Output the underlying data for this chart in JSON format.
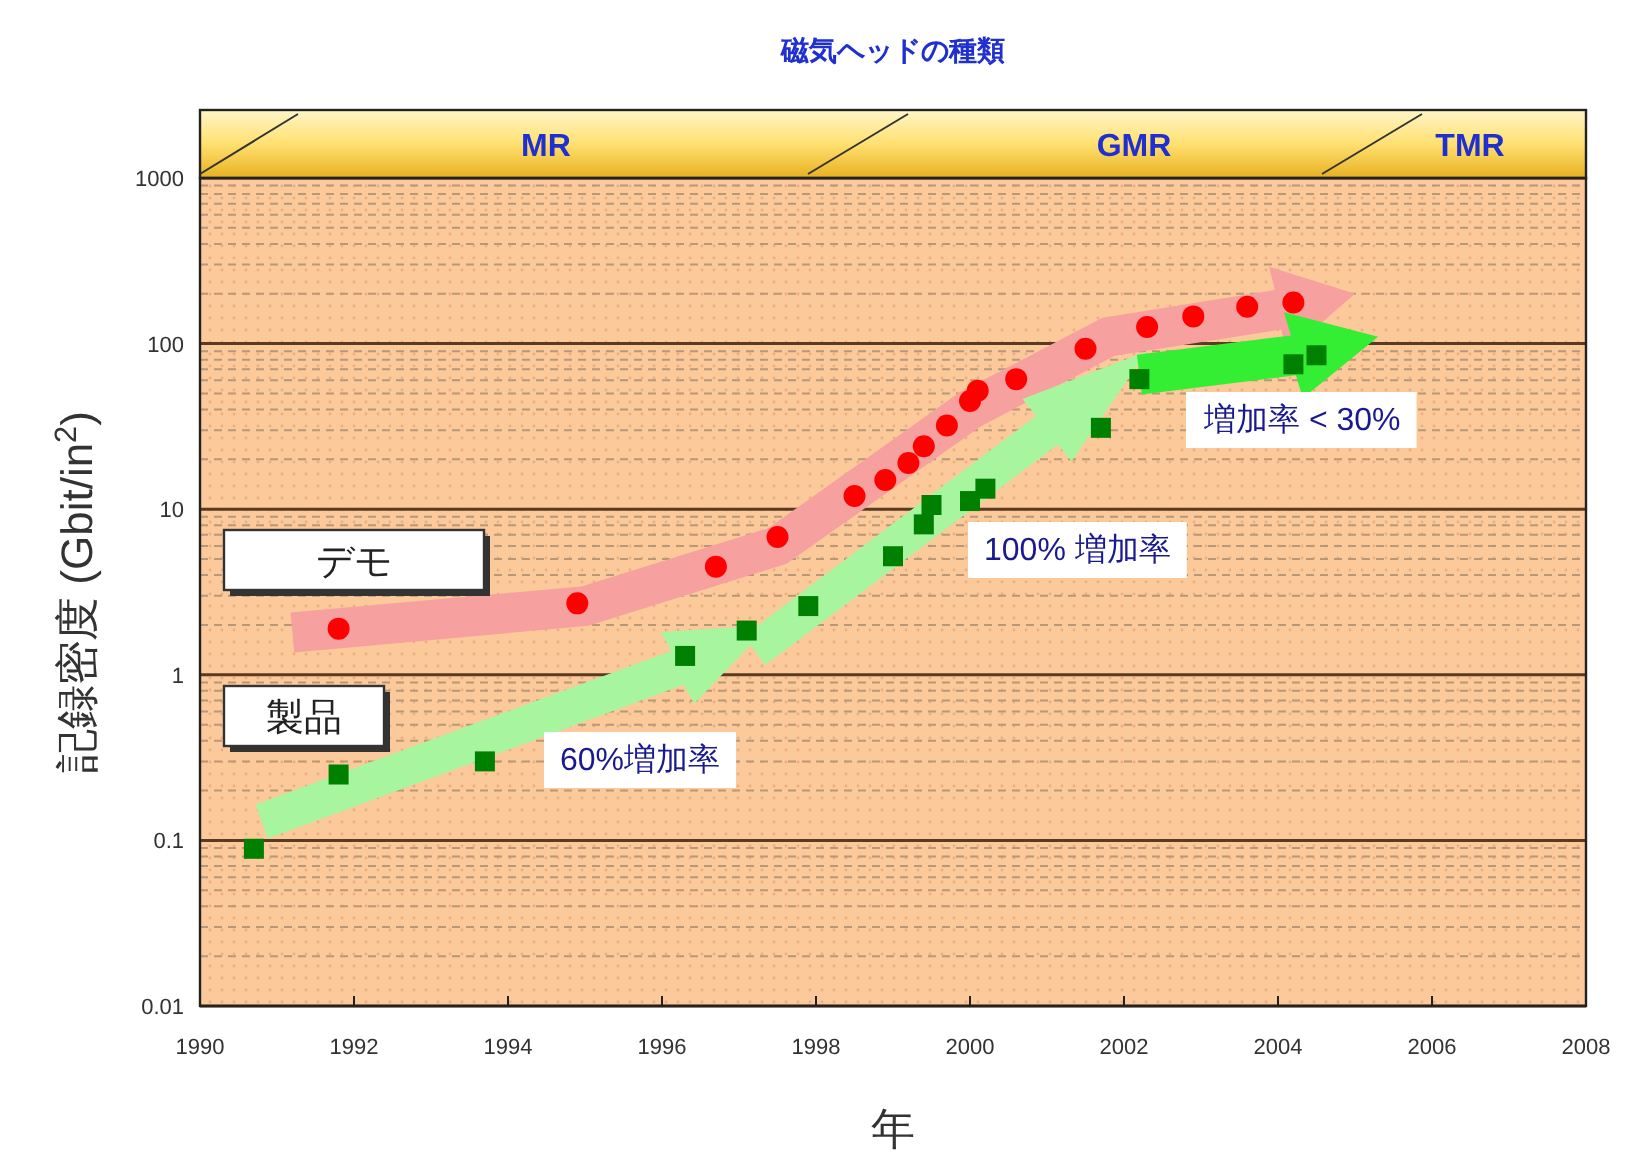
{
  "chart_data": {
    "type": "scatter",
    "title": "磁気ヘッドの種類",
    "xlabel": "年",
    "ylabel": "記録密度 (Gbit/in$^{2}$)",
    "xlim": [
      1990,
      2008
    ],
    "xticks": [
      1990,
      1992,
      1994,
      1996,
      1998,
      2000,
      2002,
      2004,
      2006,
      2008
    ],
    "ylim": [
      0.01,
      1000
    ],
    "yticks": [
      0.01,
      {
        "value": 0.02,
        "label": null
      },
      {
        "value": 0.03,
        "label": null
      },
      {
        "value": 0.04,
        "label": null
      },
      {
        "value": 0.05,
        "label": null
      },
      {
        "value": 0.06,
        "label": null
      },
      {
        "value": 0.07,
        "label": null
      },
      {
        "value": 0.08,
        "label": null
      },
      {
        "value": 0.09,
        "label": null
      },
      0.1,
      {
        "value": 0.2,
        "label": null
      },
      {
        "value": 0.3,
        "label": null
      },
      {
        "value": 0.4,
        "label": null
      },
      {
        "value": 0.5,
        "label": null
      },
      {
        "value": 0.6,
        "label": null
      },
      {
        "value": 0.7,
        "label": null
      },
      {
        "value": 0.8,
        "label": null
      },
      {
        "value": 0.9,
        "label": null
      },
      1,
      {
        "value": 2,
        "label": null
      },
      {
        "value": 3,
        "label": null
      },
      {
        "value": 4,
        "label": null
      },
      {
        "value": 5,
        "label": null
      },
      {
        "value": 6,
        "label": null
      },
      {
        "value": 7,
        "label": null
      },
      {
        "value": 8,
        "label": null
      },
      {
        "value": 9,
        "label": null
      },
      10,
      {
        "value": 20,
        "label": null
      },
      {
        "value": 30,
        "label": null
      },
      {
        "value": 40,
        "label": null
      },
      {
        "value": 50,
        "label": null
      },
      {
        "value": 60,
        "label": null
      },
      {
        "value": 70,
        "label": null
      },
      {
        "value": 80,
        "label": null
      },
      {
        "value": 90,
        "label": null
      },
      100,
      {
        "value": 200,
        "label": null
      },
      {
        "value": 300,
        "label": null
      },
      {
        "value": 400,
        "label": null
      },
      {
        "value": 500,
        "label": null
      },
      {
        "value": 600,
        "label": null
      },
      {
        "value": 700,
        "label": null
      },
      {
        "value": 800,
        "label": null
      },
      {
        "value": 900,
        "label": null
      },
      1000
    ],
    "log": true,
    "grid": "y",
    "legend": false,
    "series": [
      {
        "name": "デモ",
        "color": "#ff0000",
        "marker": "circle",
        "x": [
          1991.8,
          1994.9,
          1996.7,
          1997.5,
          1998.5,
          1998.9,
          1999.2,
          1999.4,
          1999.7,
          2000.0,
          2000.1,
          2000.6,
          2001.5,
          2002.3,
          2002.9,
          2003.6,
          2004.2
        ],
        "values": [
          1.9,
          2.7,
          4.5,
          6.8,
          12,
          15,
          19,
          24,
          32,
          45,
          52,
          61,
          93,
          126,
          146,
          167,
          177
        ]
      },
      {
        "name": "製品",
        "color": "#008000",
        "marker": "square",
        "x": [
          1990.7,
          1991.8,
          1993.7,
          1996.3,
          1997.1,
          1997.9,
          1999.0,
          1999.4,
          1999.5,
          2000.0,
          2000.2,
          2001.7,
          2002.2,
          2004.2,
          2004.5
        ],
        "values": [
          0.089,
          0.25,
          0.3,
          1.3,
          1.85,
          2.6,
          5.2,
          8.1,
          10.6,
          11.2,
          13.3,
          31,
          61,
          75,
          85
        ]
      }
    ],
    "annotations": [
      "MR",
      "GMR",
      "TMR",
      "60%増加率",
      "100% 増加率",
      "増加率 < 30%"
    ]
  }
}
